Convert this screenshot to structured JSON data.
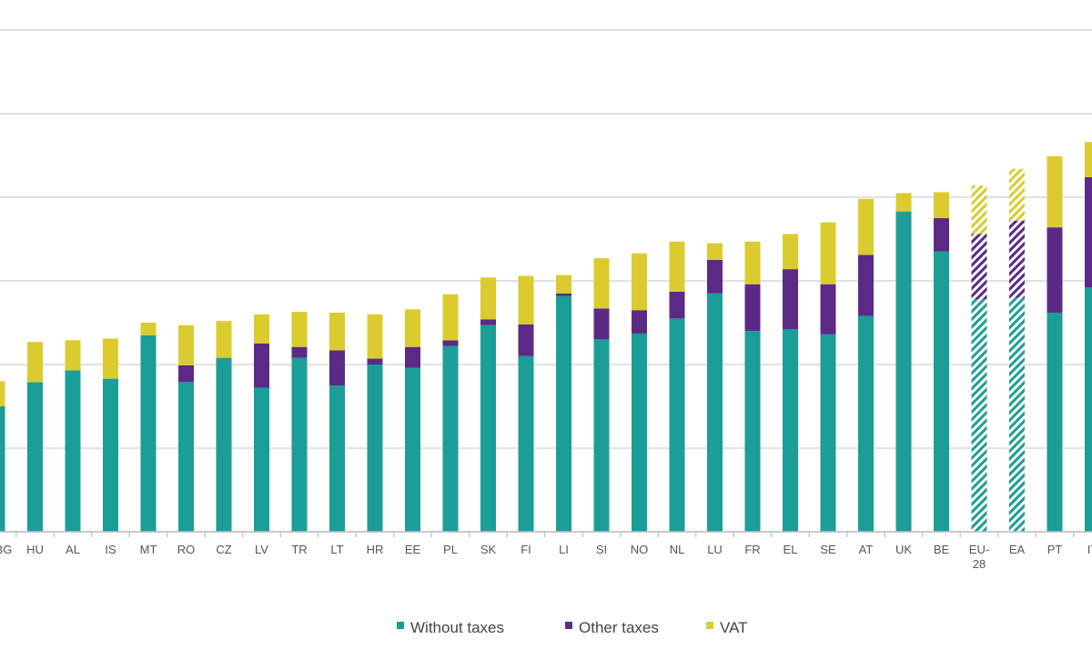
{
  "chart_data": {
    "type": "bar",
    "stacked": true,
    "grid": true,
    "legend_position": "bottom",
    "ylim": [
      0,
      6
    ],
    "categories": [
      "BG",
      "HU",
      "AL",
      "IS",
      "MT",
      "RO",
      "CZ",
      "LV",
      "TR",
      "LT",
      "HR",
      "EE",
      "PL",
      "SK",
      "FI",
      "LI",
      "SI",
      "NO",
      "NL",
      "LU",
      "FR",
      "EL",
      "SE",
      "AT",
      "UK",
      "BE",
      "EU-28",
      "EA",
      "PT",
      "IT"
    ],
    "category_labels": [
      "[clipped]",
      "HU",
      "AL",
      "IS",
      "MT",
      "RO",
      "CZ",
      "LV",
      "TR",
      "LT",
      "HR",
      "EE",
      "PL",
      "SK",
      "FI",
      "LI",
      "SI",
      "NO",
      "NL",
      "LU",
      "FR",
      "EL",
      "SE",
      "AT",
      "UK",
      "BE",
      [
        "EU-",
        "28"
      ],
      "EA",
      "PT",
      "IT"
    ],
    "hatched_categories": [
      "EU-28",
      "EA"
    ],
    "series": [
      {
        "name": "Without taxes",
        "color": "#1a9e97",
        "values": [
          1.5,
          1.79,
          1.93,
          1.83,
          2.35,
          1.79,
          2.08,
          1.72,
          2.08,
          1.75,
          2.0,
          1.96,
          2.22,
          2.47,
          2.1,
          2.82,
          2.3,
          2.37,
          2.55,
          2.85,
          2.4,
          2.42,
          2.36,
          2.58,
          3.83,
          3.35,
          2.78,
          2.8,
          2.62,
          2.92
        ]
      },
      {
        "name": "Other taxes",
        "color": "#5b2a86",
        "values": [
          0.0,
          0.0,
          0.0,
          0.0,
          0.0,
          0.2,
          0.0,
          0.53,
          0.13,
          0.42,
          0.07,
          0.25,
          0.07,
          0.07,
          0.38,
          0.03,
          0.37,
          0.28,
          0.32,
          0.4,
          0.56,
          0.72,
          0.6,
          0.73,
          0.0,
          0.4,
          0.78,
          0.92,
          1.02,
          1.32
        ]
      },
      {
        "name": "VAT",
        "color": "#dccb2e",
        "values": [
          0.3,
          0.48,
          0.36,
          0.48,
          0.15,
          0.48,
          0.44,
          0.35,
          0.42,
          0.45,
          0.53,
          0.45,
          0.55,
          0.5,
          0.58,
          0.22,
          0.6,
          0.68,
          0.6,
          0.2,
          0.51,
          0.42,
          0.74,
          0.67,
          0.22,
          0.31,
          0.58,
          0.62,
          0.85,
          0.42
        ]
      }
    ]
  }
}
